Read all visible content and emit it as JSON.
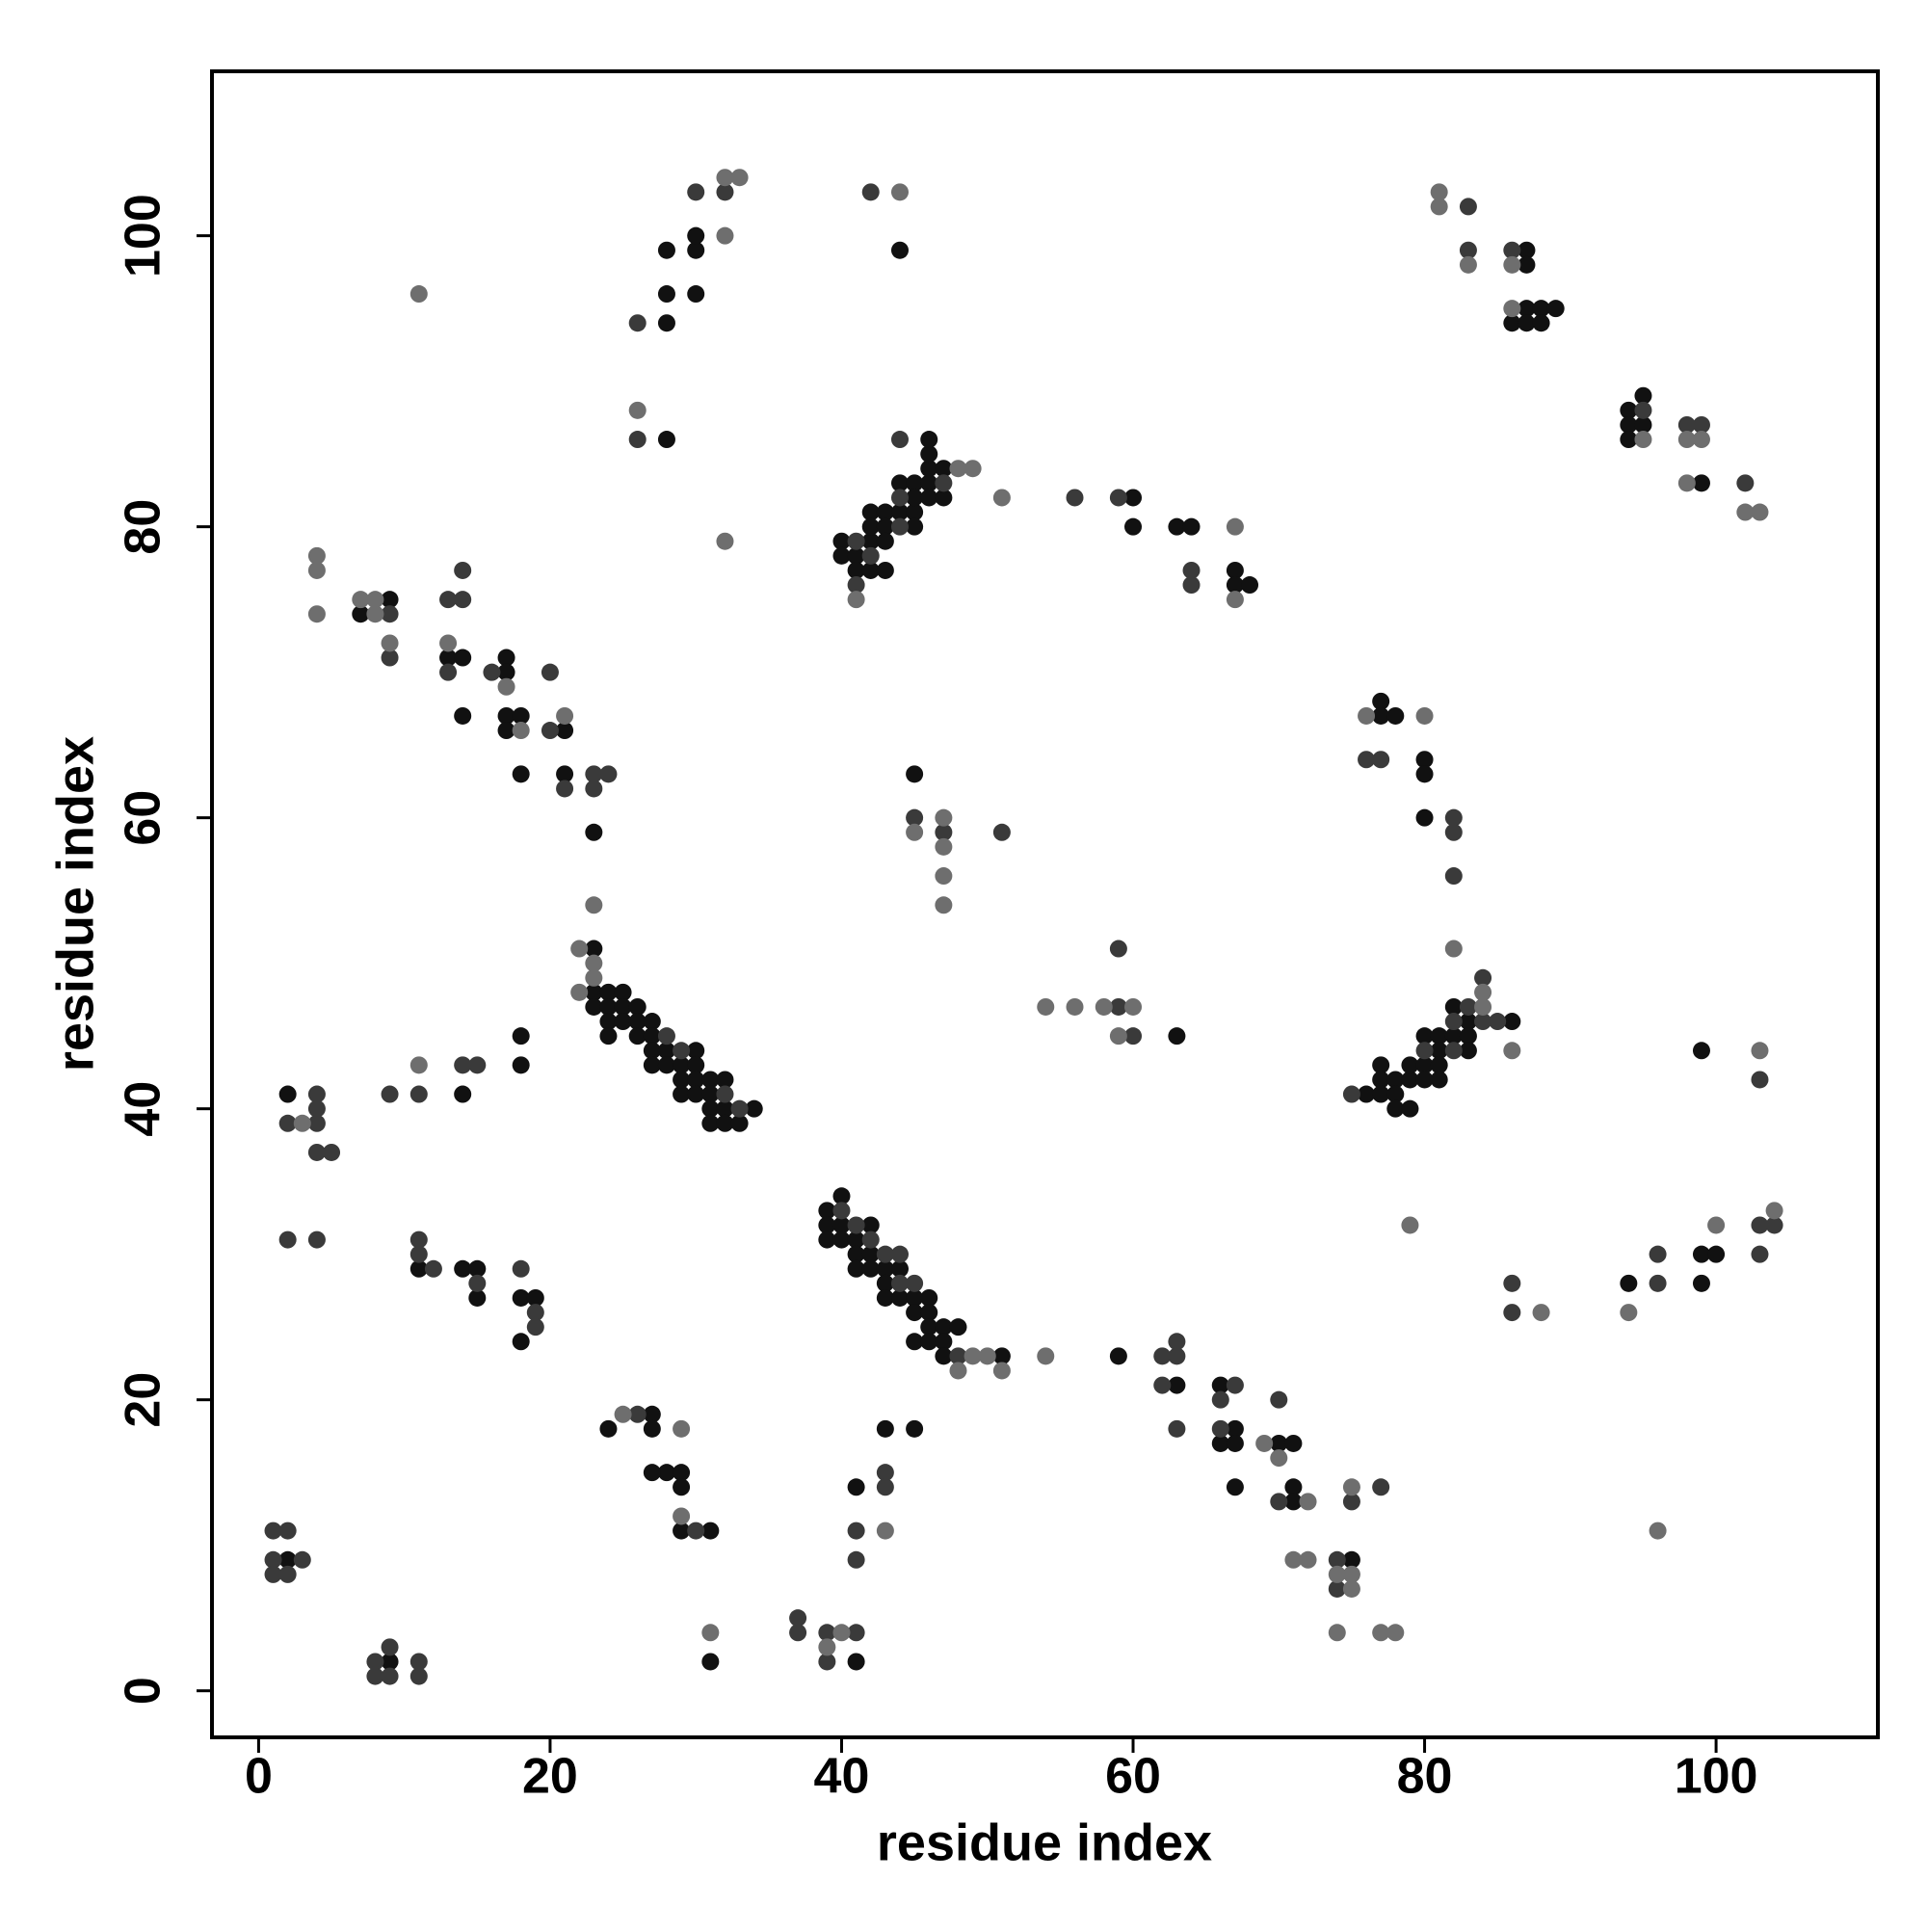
{
  "chart_data": {
    "type": "scatter",
    "xlabel": "residue index",
    "ylabel": "residue index",
    "xlim": [
      -3.2,
      111.1
    ],
    "ylim": [
      -3.2,
      111.3
    ],
    "xticks": [
      0,
      20,
      40,
      60,
      80,
      100
    ],
    "yticks": [
      0,
      20,
      40,
      60,
      80,
      100
    ],
    "grid": false,
    "series": [
      {
        "color": "#111111",
        "x": [
          2,
          9,
          41,
          31,
          2,
          14,
          18,
          18,
          11,
          14,
          15,
          15,
          18,
          19,
          18,
          24,
          27,
          27,
          28,
          27,
          29,
          29,
          29,
          31,
          41,
          43,
          45,
          40,
          39,
          39,
          40,
          42,
          39,
          40,
          41,
          41,
          42,
          41,
          42,
          43,
          44,
          43,
          43,
          44,
          45,
          46,
          45,
          46,
          46,
          47,
          48,
          45,
          46,
          47,
          47,
          51,
          59,
          63,
          66,
          67,
          66,
          67,
          67,
          70,
          71,
          71,
          71,
          75,
          23,
          23,
          24,
          25,
          23,
          24,
          25,
          26,
          24,
          25,
          26,
          27,
          24,
          26,
          27,
          27,
          28,
          30,
          27,
          28,
          29,
          30,
          29,
          30,
          31,
          32,
          29,
          30,
          31,
          31,
          32,
          34,
          31,
          32,
          33,
          9,
          7,
          13,
          14,
          14,
          17,
          17,
          17,
          18,
          17,
          18,
          21,
          21,
          23,
          28,
          28,
          28,
          30,
          30,
          30,
          28,
          44,
          40,
          42,
          40,
          41,
          41,
          42,
          43,
          42,
          43,
          42,
          43,
          43,
          44,
          45,
          45,
          44,
          45,
          46,
          45,
          46,
          47,
          46,
          47,
          46,
          46,
          60,
          60,
          63,
          64,
          67,
          67,
          68,
          45,
          63,
          76,
          77,
          77,
          77,
          78,
          78,
          78,
          79,
          79,
          79,
          80,
          80,
          80,
          81,
          81,
          81,
          81,
          82,
          82,
          83,
          83,
          83,
          86,
          77,
          77,
          78,
          80,
          80,
          80,
          94,
          99,
          100,
          99,
          99,
          87,
          87,
          87,
          88,
          89,
          86,
          87,
          88,
          94,
          95,
          94,
          95,
          94,
          99
        ],
        "y": [
          9,
          2,
          2,
          2,
          41,
          41,
          45,
          43,
          29,
          29,
          29,
          27,
          27,
          27,
          24,
          18,
          19,
          18,
          15,
          15,
          15,
          14,
          11,
          11,
          14,
          18,
          18,
          34,
          33,
          32,
          32,
          32,
          31,
          31,
          31,
          30,
          30,
          29,
          29,
          29,
          29,
          28,
          27,
          27,
          27,
          27,
          26,
          26,
          25,
          25,
          25,
          24,
          24,
          24,
          23,
          23,
          23,
          21,
          21,
          18,
          17,
          17,
          14,
          17,
          17,
          14,
          13,
          9,
          51,
          48,
          48,
          48,
          47,
          47,
          47,
          47,
          46,
          46,
          46,
          46,
          45,
          45,
          45,
          44,
          44,
          44,
          43,
          43,
          43,
          43,
          42,
          42,
          42,
          42,
          41,
          41,
          41,
          40,
          40,
          40,
          39,
          39,
          39,
          75,
          74,
          71,
          71,
          67,
          71,
          70,
          67,
          67,
          66,
          63,
          66,
          63,
          59,
          94,
          96,
          99,
          99,
          100,
          96,
          86,
          99,
          79,
          79,
          78,
          78,
          77,
          77,
          77,
          81,
          81,
          80,
          80,
          79,
          81,
          81,
          80,
          83,
          83,
          83,
          82,
          82,
          82,
          84,
          84,
          85,
          86,
          82,
          80,
          80,
          80,
          77,
          76,
          76,
          63,
          45,
          41,
          43,
          42,
          41,
          42,
          41,
          40,
          40,
          42,
          43,
          43,
          42,
          45,
          45,
          44,
          43,
          42,
          45,
          47,
          46,
          45,
          44,
          46,
          68,
          67,
          67,
          64,
          63,
          60,
          28,
          30,
          30,
          28,
          44,
          99,
          98,
          95,
          95,
          95,
          94,
          94,
          94,
          88,
          89,
          87,
          87,
          86,
          83
        ]
      },
      {
        "color": "#3a3a3a",
        "x": [
          1,
          2,
          1,
          3,
          1,
          2,
          8,
          9,
          8,
          9,
          11,
          11,
          2,
          4,
          2,
          4,
          4,
          4,
          4,
          5,
          9,
          11,
          14,
          15,
          11,
          11,
          12,
          15,
          18,
          19,
          19,
          26,
          30,
          37,
          37,
          39,
          39,
          41,
          41,
          41,
          43,
          43,
          40,
          41,
          42,
          43,
          44,
          44,
          45,
          48,
          62,
          63,
          63,
          62,
          63,
          67,
          66,
          66,
          70,
          70,
          74,
          74,
          75,
          77,
          28,
          29,
          32,
          33,
          9,
          9,
          13,
          14,
          14,
          13,
          16,
          20,
          20,
          21,
          23,
          24,
          23,
          26,
          30,
          32,
          26,
          42,
          41,
          42,
          41,
          44,
          44,
          47,
          44,
          56,
          59,
          64,
          64,
          45,
          47,
          51,
          59,
          60,
          59,
          75,
          80,
          82,
          82,
          83,
          84,
          84,
          85,
          76,
          77,
          82,
          82,
          82,
          86,
          86,
          96,
          96,
          103,
          104,
          103,
          103,
          83,
          83,
          86,
          95,
          98,
          99,
          102
        ],
        "y": [
          11,
          11,
          9,
          9,
          8,
          8,
          2,
          3,
          1,
          1,
          2,
          1,
          31,
          31,
          39,
          41,
          40,
          39,
          37,
          37,
          41,
          41,
          43,
          43,
          31,
          30,
          29,
          28,
          29,
          26,
          25,
          19,
          11,
          5,
          4,
          4,
          2,
          4,
          11,
          9,
          15,
          14,
          33,
          32,
          31,
          30,
          30,
          28,
          28,
          23,
          23,
          23,
          24,
          21,
          18,
          21,
          20,
          18,
          20,
          13,
          9,
          7,
          13,
          14,
          45,
          44,
          41,
          40,
          74,
          71,
          75,
          75,
          77,
          70,
          70,
          70,
          66,
          62,
          63,
          63,
          62,
          94,
          103,
          103,
          86,
          103,
          79,
          78,
          76,
          80,
          82,
          83,
          86,
          82,
          82,
          77,
          76,
          60,
          59,
          59,
          47,
          45,
          51,
          41,
          44,
          46,
          44,
          47,
          49,
          46,
          46,
          64,
          64,
          60,
          59,
          56,
          28,
          26,
          30,
          28,
          32,
          32,
          30,
          42,
          102,
          99,
          99,
          88,
          87,
          87,
          83
        ]
      },
      {
        "color": "#6e6e6e",
        "x": [
          3,
          11,
          29,
          29,
          25,
          31,
          39,
          40,
          43,
          49,
          50,
          48,
          51,
          54,
          69,
          70,
          72,
          71,
          72,
          74,
          75,
          75,
          75,
          74,
          77,
          78,
          22,
          23,
          23,
          22,
          23,
          4,
          4,
          4,
          7,
          8,
          8,
          9,
          13,
          17,
          18,
          21,
          11,
          32,
          33,
          32,
          26,
          32,
          44,
          41,
          48,
          49,
          51,
          67,
          67,
          45,
          47,
          47,
          47,
          47,
          54,
          56,
          58,
          60,
          59,
          84,
          84,
          86,
          76,
          80,
          82,
          79,
          88,
          94,
          96,
          100,
          104,
          103,
          81,
          81,
          83,
          86,
          86,
          95,
          98,
          99,
          98,
          102,
          103
        ],
        "y": [
          39,
          43,
          18,
          12,
          19,
          4,
          3,
          4,
          11,
          23,
          23,
          22,
          22,
          23,
          17,
          16,
          13,
          9,
          9,
          8,
          8,
          7,
          14,
          4,
          4,
          4,
          51,
          50,
          49,
          48,
          54,
          78,
          77,
          74,
          75,
          75,
          74,
          72,
          72,
          69,
          66,
          67,
          96,
          104,
          104,
          100,
          88,
          79,
          103,
          75,
          84,
          84,
          82,
          80,
          75,
          59,
          60,
          58,
          56,
          54,
          47,
          47,
          47,
          47,
          45,
          47,
          48,
          44,
          67,
          67,
          51,
          32,
          26,
          26,
          11,
          32,
          33,
          44,
          103,
          102,
          98,
          98,
          95,
          86,
          86,
          86,
          83,
          81,
          81
        ]
      }
    ]
  }
}
